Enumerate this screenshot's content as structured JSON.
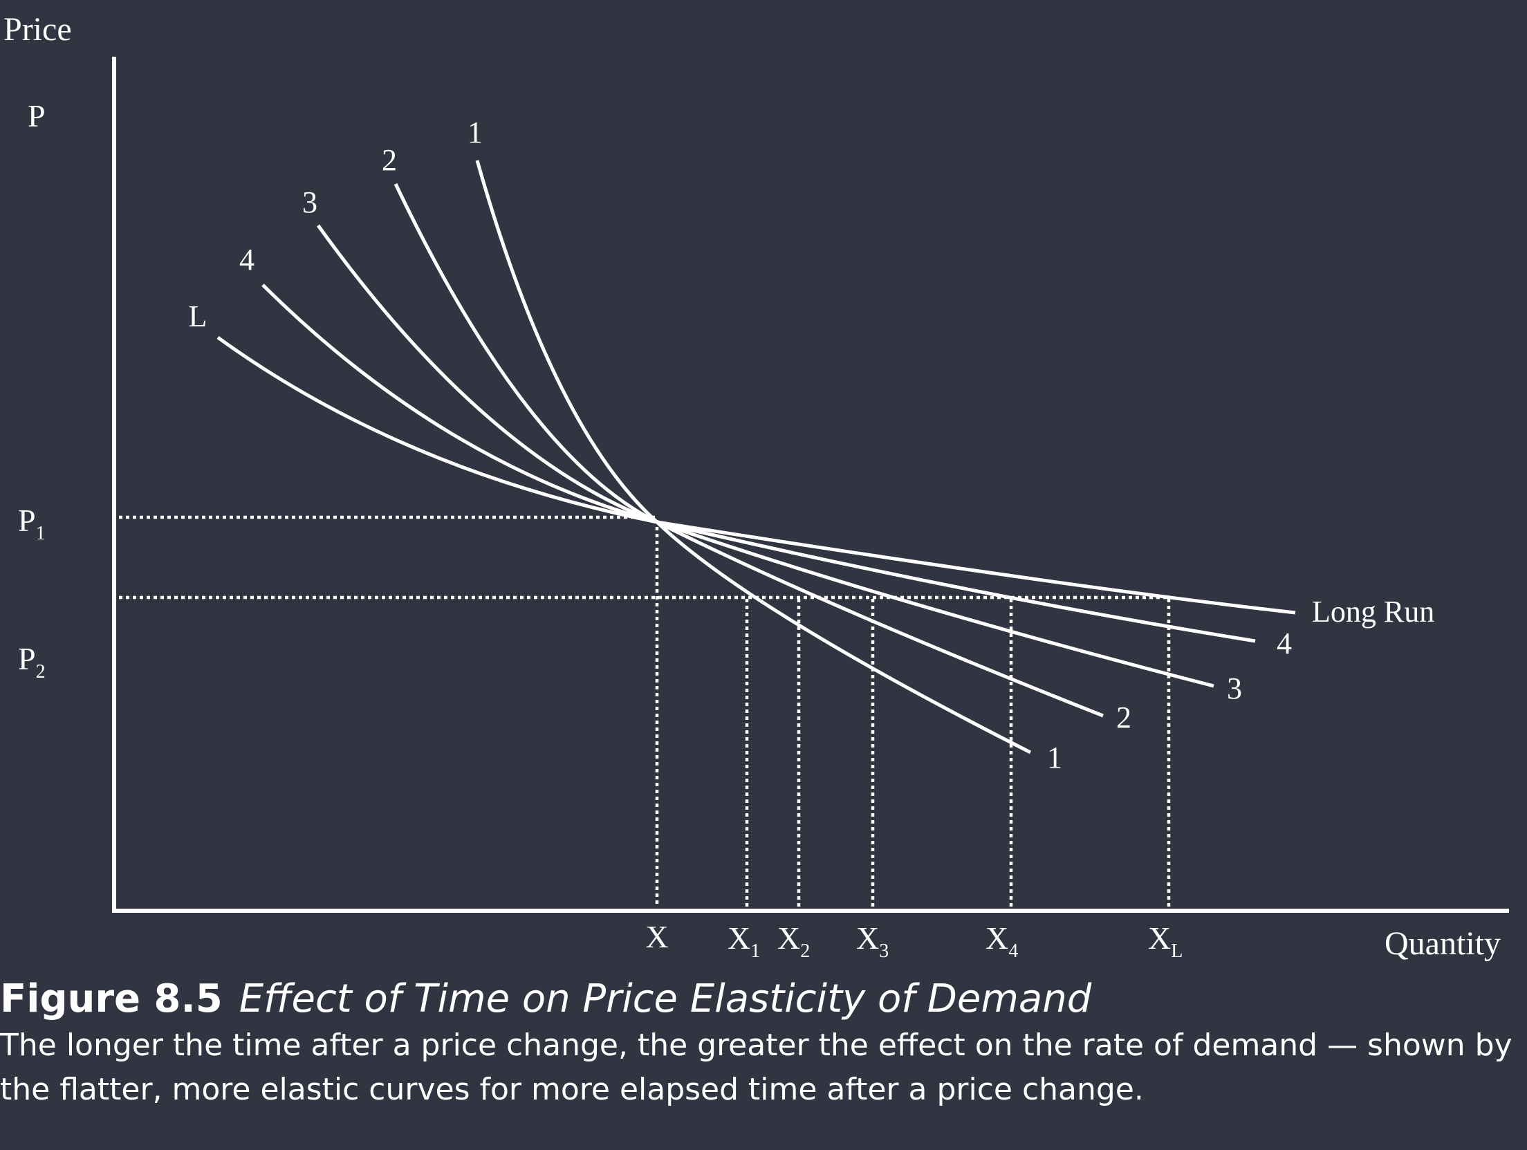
{
  "axes": {
    "y_label": "Price",
    "x_label": "Quantity"
  },
  "price_labels": [
    {
      "base": "P",
      "sub": ""
    },
    {
      "base": "P",
      "sub": "1"
    },
    {
      "base": "P",
      "sub": "2"
    }
  ],
  "quantity_labels": [
    {
      "base": "X",
      "sub": ""
    },
    {
      "base": "X",
      "sub": "1"
    },
    {
      "base": "X",
      "sub": "2"
    },
    {
      "base": "X",
      "sub": "3"
    },
    {
      "base": "X",
      "sub": "4"
    },
    {
      "base": "X",
      "sub": "L"
    }
  ],
  "curves": [
    {
      "top_label": "1",
      "end_label": "1"
    },
    {
      "top_label": "2",
      "end_label": "2"
    },
    {
      "top_label": "3",
      "end_label": "3"
    },
    {
      "top_label": "4",
      "end_label": "4"
    },
    {
      "top_label": "L",
      "end_label": "Long Run"
    }
  ],
  "caption": {
    "figure_number": "Figure 8.5",
    "figure_title": "Effect of Time on Price Elasticity of Demand",
    "text": "The longer the time after a price change, the greater the effect on the rate of demand — shown by the flatter, more elastic curves for more elapsed time after a price change."
  },
  "colors": {
    "background": "#303541",
    "foreground": "#ffffff"
  }
}
